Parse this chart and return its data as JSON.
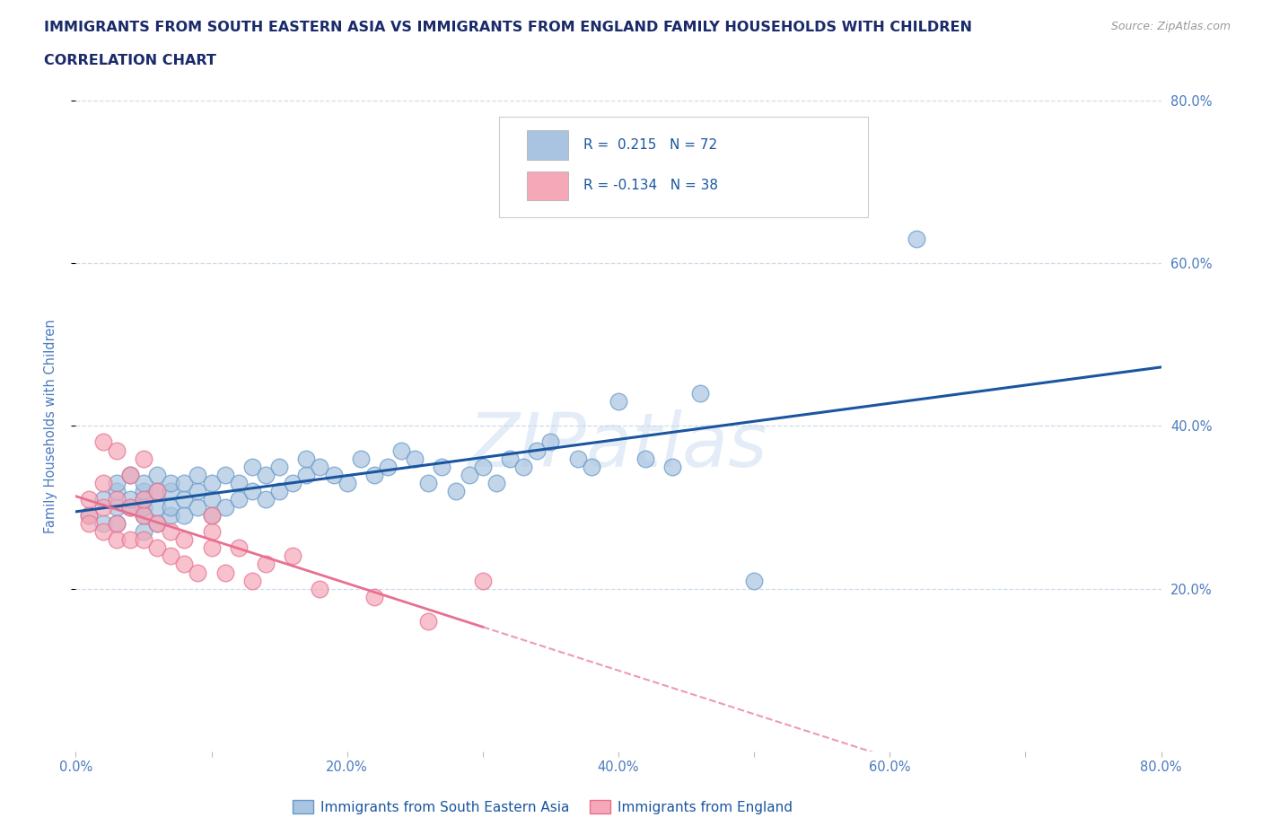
{
  "title_line1": "IMMIGRANTS FROM SOUTH EASTERN ASIA VS IMMIGRANTS FROM ENGLAND FAMILY HOUSEHOLDS WITH CHILDREN",
  "title_line2": "CORRELATION CHART",
  "source_text": "Source: ZipAtlas.com",
  "ylabel": "Family Households with Children",
  "watermark": "ZIPatlas",
  "xlim": [
    0.0,
    0.8
  ],
  "ylim": [
    0.0,
    0.8
  ],
  "xtick_labels": [
    "0.0%",
    "",
    "20.0%",
    "",
    "40.0%",
    "",
    "60.0%",
    "",
    "80.0%"
  ],
  "xtick_vals": [
    0.0,
    0.1,
    0.2,
    0.3,
    0.4,
    0.5,
    0.6,
    0.7,
    0.8
  ],
  "ytick_labels": [
    "20.0%",
    "40.0%",
    "60.0%",
    "80.0%"
  ],
  "ytick_vals": [
    0.2,
    0.4,
    0.6,
    0.8
  ],
  "series1_color": "#a8c4e0",
  "series2_color": "#f4a8b8",
  "series1_edge": "#6899c8",
  "series2_edge": "#e87090",
  "line1_color": "#1a56a0",
  "line2_color": "#e87090",
  "title_color": "#1a2a6a",
  "tick_label_color": "#4a7abf",
  "background_color": "#ffffff",
  "grid_color": "#c8d8e8",
  "legend_box_color1": "#a8c4e0",
  "legend_box_color2": "#f4a8b8",
  "legend_text_color": "#1a56a0",
  "series1_x": [
    0.01,
    0.02,
    0.02,
    0.03,
    0.03,
    0.03,
    0.03,
    0.04,
    0.04,
    0.04,
    0.05,
    0.05,
    0.05,
    0.05,
    0.05,
    0.05,
    0.06,
    0.06,
    0.06,
    0.06,
    0.07,
    0.07,
    0.07,
    0.07,
    0.08,
    0.08,
    0.08,
    0.09,
    0.09,
    0.09,
    0.1,
    0.1,
    0.1,
    0.11,
    0.11,
    0.12,
    0.12,
    0.13,
    0.13,
    0.14,
    0.14,
    0.15,
    0.15,
    0.16,
    0.17,
    0.17,
    0.18,
    0.19,
    0.2,
    0.21,
    0.22,
    0.23,
    0.24,
    0.25,
    0.26,
    0.27,
    0.28,
    0.29,
    0.3,
    0.31,
    0.32,
    0.33,
    0.34,
    0.35,
    0.37,
    0.38,
    0.4,
    0.42,
    0.44,
    0.46,
    0.5,
    0.62
  ],
  "series1_y": [
    0.29,
    0.31,
    0.28,
    0.3,
    0.28,
    0.32,
    0.33,
    0.3,
    0.31,
    0.34,
    0.27,
    0.29,
    0.31,
    0.32,
    0.33,
    0.3,
    0.28,
    0.3,
    0.32,
    0.34,
    0.29,
    0.3,
    0.32,
    0.33,
    0.29,
    0.31,
    0.33,
    0.3,
    0.32,
    0.34,
    0.29,
    0.31,
    0.33,
    0.3,
    0.34,
    0.31,
    0.33,
    0.32,
    0.35,
    0.31,
    0.34,
    0.32,
    0.35,
    0.33,
    0.34,
    0.36,
    0.35,
    0.34,
    0.33,
    0.36,
    0.34,
    0.35,
    0.37,
    0.36,
    0.33,
    0.35,
    0.32,
    0.34,
    0.35,
    0.33,
    0.36,
    0.35,
    0.37,
    0.38,
    0.36,
    0.35,
    0.43,
    0.36,
    0.35,
    0.44,
    0.21,
    0.63
  ],
  "series2_x": [
    0.01,
    0.01,
    0.01,
    0.02,
    0.02,
    0.02,
    0.02,
    0.03,
    0.03,
    0.03,
    0.03,
    0.04,
    0.04,
    0.04,
    0.05,
    0.05,
    0.05,
    0.05,
    0.06,
    0.06,
    0.06,
    0.07,
    0.07,
    0.08,
    0.08,
    0.09,
    0.1,
    0.1,
    0.1,
    0.11,
    0.12,
    0.13,
    0.14,
    0.16,
    0.18,
    0.22,
    0.26,
    0.3
  ],
  "series2_y": [
    0.29,
    0.31,
    0.28,
    0.27,
    0.3,
    0.33,
    0.38,
    0.26,
    0.28,
    0.31,
    0.37,
    0.26,
    0.3,
    0.34,
    0.26,
    0.29,
    0.31,
    0.36,
    0.25,
    0.28,
    0.32,
    0.24,
    0.27,
    0.23,
    0.26,
    0.22,
    0.27,
    0.25,
    0.29,
    0.22,
    0.25,
    0.21,
    0.23,
    0.24,
    0.2,
    0.19,
    0.16,
    0.21
  ],
  "bottom_legend": [
    "Immigrants from South Eastern Asia",
    "Immigrants from England"
  ]
}
